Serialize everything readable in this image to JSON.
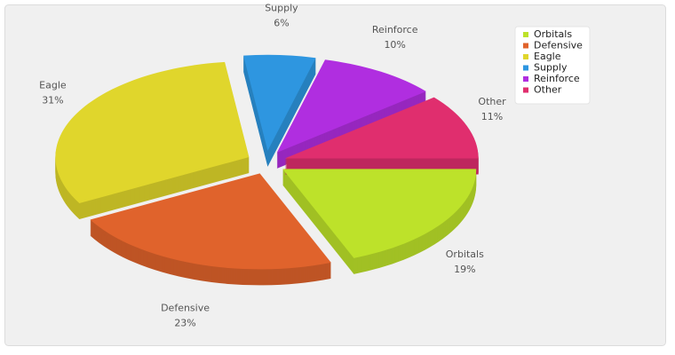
{
  "chart_data": {
    "type": "pie",
    "categories": [
      "Orbitals",
      "Defensive",
      "Eagle",
      "Supply",
      "Reinforce",
      "Other"
    ],
    "values": [
      19,
      23,
      31,
      6,
      10,
      11
    ],
    "value_labels": [
      "19%",
      "23%",
      "31%",
      "6%",
      "10%",
      "11%"
    ],
    "colors": [
      "#bde22a",
      "#e0632c",
      "#e0d62c",
      "#2e96e0",
      "#b02ee0",
      "#e02e6e"
    ],
    "legend": "top-right"
  }
}
